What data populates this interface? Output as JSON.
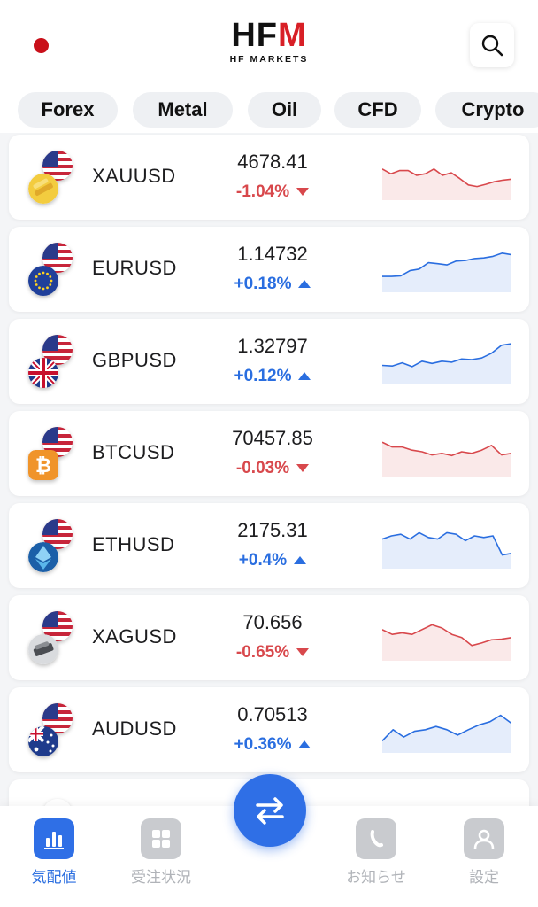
{
  "header": {
    "logo_text": "HFM",
    "logo_subtext": "HF MARKETS",
    "brand_color": "#d81f26"
  },
  "tabs": [
    {
      "label": "Forex"
    },
    {
      "label": "Metal"
    },
    {
      "label": "Oil"
    },
    {
      "label": "CFD"
    },
    {
      "label": "Crypto"
    }
  ],
  "quotes": [
    {
      "symbol": "XAUUSD",
      "price": "4678.41",
      "change": "-1.04%",
      "direction": "down",
      "base_icon": "gold-coin-icon",
      "spark": [
        0.3,
        0.45,
        0.35,
        0.35,
        0.5,
        0.45,
        0.3,
        0.5,
        0.42,
        0.6,
        0.8,
        0.85,
        0.78,
        0.7,
        0.65,
        0.62
      ]
    },
    {
      "symbol": "EURUSD",
      "price": "1.14732",
      "change": "+0.18%",
      "direction": "up",
      "base_icon": "eu-flag-icon",
      "spark": [
        0.78,
        0.78,
        0.76,
        0.6,
        0.55,
        0.35,
        0.38,
        0.42,
        0.3,
        0.28,
        0.22,
        0.2,
        0.15,
        0.05,
        0.1
      ]
    },
    {
      "symbol": "GBPUSD",
      "price": "1.32797",
      "change": "+0.12%",
      "direction": "up",
      "base_icon": "uk-flag-icon",
      "spark": [
        0.68,
        0.7,
        0.6,
        0.72,
        0.55,
        0.62,
        0.55,
        0.58,
        0.48,
        0.5,
        0.45,
        0.3,
        0.05,
        0.0
      ]
    },
    {
      "symbol": "BTCUSD",
      "price": "70457.85",
      "change": "-0.03%",
      "direction": "down",
      "base_icon": "bitcoin-icon",
      "spark": [
        0.2,
        0.35,
        0.35,
        0.45,
        0.5,
        0.6,
        0.55,
        0.62,
        0.5,
        0.55,
        0.45,
        0.3,
        0.6,
        0.55
      ]
    },
    {
      "symbol": "ETHUSD",
      "price": "2175.31",
      "change": "+0.4%",
      "direction": "up",
      "base_icon": "ethereum-icon",
      "spark": [
        0.35,
        0.25,
        0.2,
        0.35,
        0.15,
        0.3,
        0.35,
        0.15,
        0.2,
        0.4,
        0.25,
        0.3,
        0.25,
        0.85,
        0.8
      ]
    },
    {
      "symbol": "XAGUSD",
      "price": "70.656",
      "change": "-0.65%",
      "direction": "down",
      "base_icon": "silver-coin-icon",
      "spark": [
        0.3,
        0.45,
        0.4,
        0.45,
        0.3,
        0.15,
        0.25,
        0.45,
        0.55,
        0.8,
        0.72,
        0.62,
        0.6,
        0.55
      ]
    },
    {
      "symbol": "AUDUSD",
      "price": "0.70513",
      "change": "+0.36%",
      "direction": "up",
      "base_icon": "au-flag-icon",
      "spark": [
        0.9,
        0.55,
        0.78,
        0.6,
        0.55,
        0.45,
        0.55,
        0.72,
        0.55,
        0.4,
        0.3,
        0.1,
        0.35
      ]
    }
  ],
  "bottom_nav": [
    {
      "label": "気配値",
      "icon": "chart-bars-icon",
      "active": true
    },
    {
      "label": "受注状況",
      "icon": "grid-icon",
      "active": false
    },
    {
      "label": "お知らせ",
      "icon": "bell-icon",
      "active": false
    },
    {
      "label": "設定",
      "icon": "user-icon",
      "active": false
    }
  ],
  "fab": {
    "icon": "swap-arrows-icon"
  },
  "colors": {
    "up": "#2a6ee0",
    "down": "#d8484c",
    "accent": "#2f6fe6"
  }
}
